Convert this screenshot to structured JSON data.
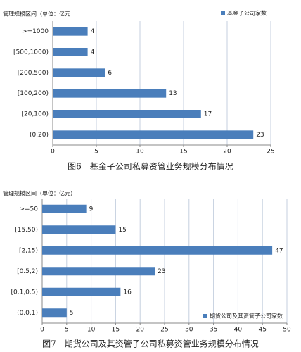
{
  "chart_data": [
    {
      "type": "bar",
      "orientation": "horizontal",
      "axis_label": "管理规模区间（单位：亿元",
      "categories": [
        ">=1000",
        "[500,1000)",
        "[200,500)",
        "[100,200)",
        "[20,100)",
        "(0,20)"
      ],
      "series": [
        {
          "name": "基金子公司家数",
          "color": "#4a7ebb",
          "values": [
            4,
            4,
            6,
            13,
            17,
            23
          ]
        }
      ],
      "xlim": [
        0,
        25
      ],
      "xticks": [
        0,
        5,
        10,
        15,
        20,
        25
      ],
      "grid": true,
      "legend": "top-right",
      "caption": "图6　基金子公司私募资管业务规模分布情况"
    },
    {
      "type": "bar",
      "orientation": "horizontal",
      "axis_label": "管理规模区间（单位：亿元）",
      "categories": [
        ">=50",
        "[15,50)",
        "[2,15)",
        "[0.5,2)",
        "[0.1,0.5)",
        "(0,0.1)"
      ],
      "series": [
        {
          "name": "期货公司及其资管子公司家数",
          "color": "#4a7ebb",
          "values": [
            9,
            15,
            47,
            23,
            16,
            5
          ]
        }
      ],
      "xlim": [
        0,
        50
      ],
      "xticks": [
        0,
        5,
        10,
        15,
        20,
        25,
        30,
        35,
        40,
        45,
        50
      ],
      "grid": true,
      "legend": "bottom-right",
      "caption": "图7　期货公司及其资管子公司私募资管业务规模分布情况"
    }
  ]
}
